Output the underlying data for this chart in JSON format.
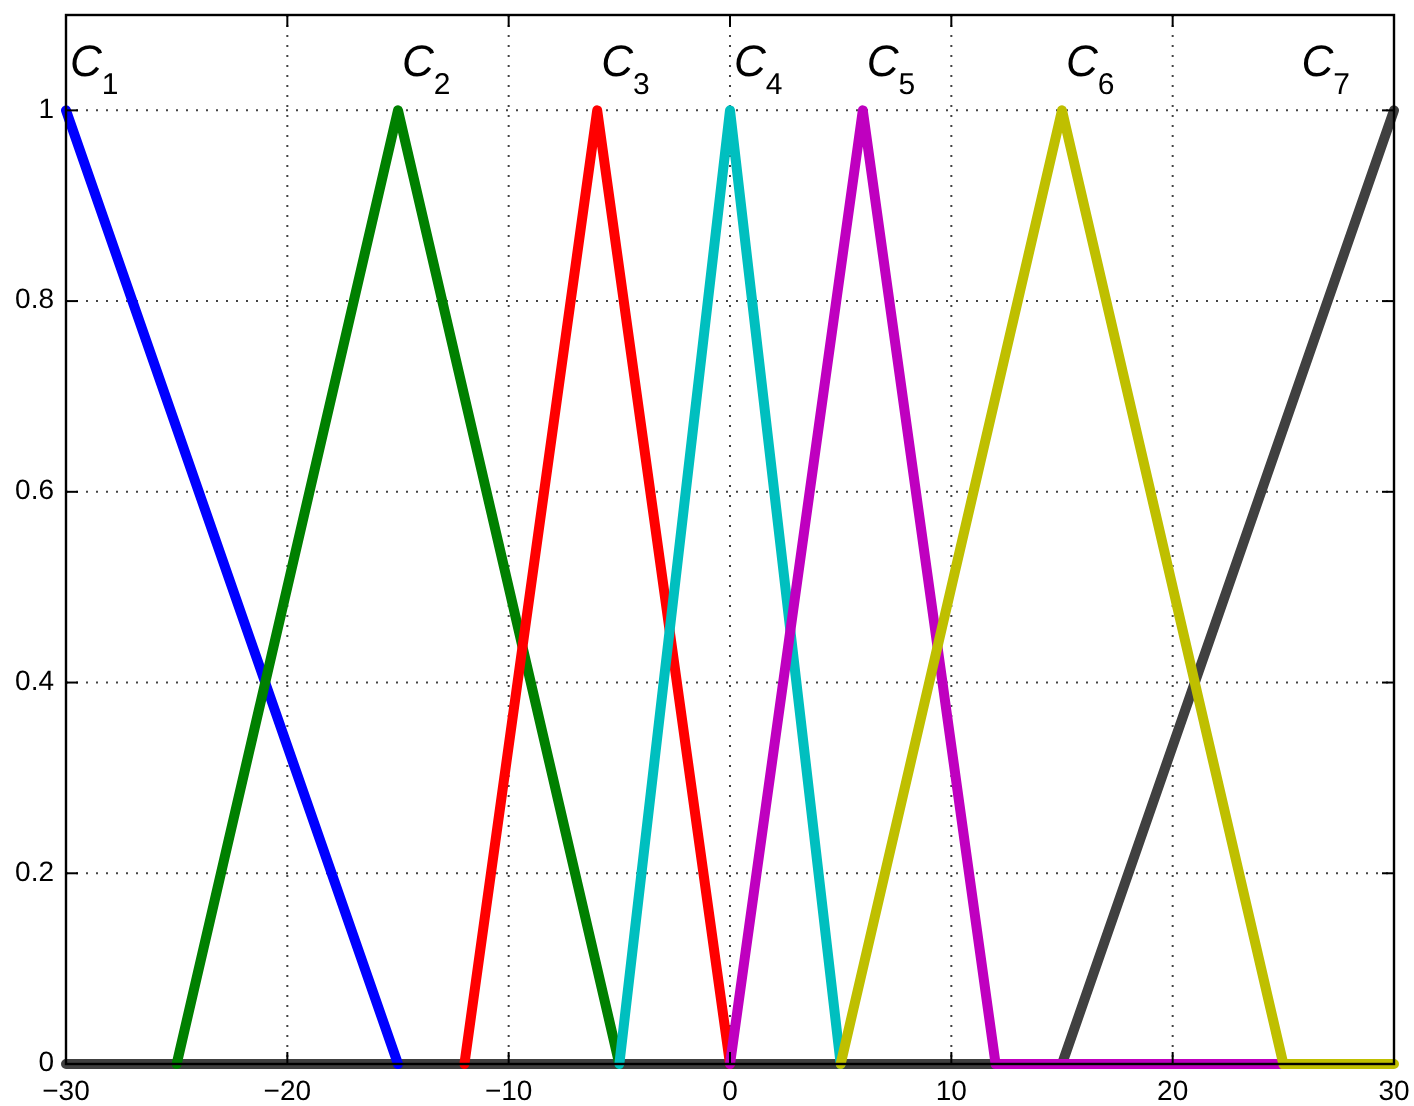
{
  "chart_data": {
    "type": "line",
    "series": [
      {
        "name": "C$_{7}$",
        "color": "#404040",
        "x": [
          -30,
          15,
          30
        ],
        "values": [
          0,
          0,
          1
        ]
      },
      {
        "name": "C$_{1}$",
        "color": "#0000ff",
        "x": [
          -30,
          -15
        ],
        "values": [
          1,
          0
        ]
      },
      {
        "name": "C$_{2}$",
        "color": "#008000",
        "x": [
          -25,
          -15,
          -5
        ],
        "values": [
          0,
          1,
          0
        ]
      },
      {
        "name": "C$_{3}$",
        "color": "#ff0000",
        "x": [
          -12,
          -6,
          0
        ],
        "values": [
          0,
          1,
          0
        ]
      },
      {
        "name": "C$_{4}$",
        "color": "#00bfbf",
        "x": [
          -5,
          0,
          5
        ],
        "values": [
          0,
          1,
          0
        ]
      },
      {
        "name": "C$_{5}$",
        "color": "#bf00bf",
        "x": [
          0,
          6,
          12,
          25
        ],
        "values": [
          0,
          1,
          0,
          0
        ]
      },
      {
        "name": "C$_{6}$",
        "color": "#bfbf00",
        "x": [
          5,
          15,
          25,
          30
        ],
        "values": [
          0,
          1,
          0,
          0
        ]
      }
    ],
    "xlim": [
      -30,
      30
    ],
    "ylim": [
      0,
      1.1
    ],
    "xticks": [
      {
        "value": -30,
        "label": "−30"
      },
      {
        "value": -20,
        "label": "−20"
      },
      {
        "value": -10,
        "label": "−10"
      },
      0,
      10,
      20,
      30
    ],
    "yticks": [
      0,
      0.2,
      0.4,
      0.6,
      0.8,
      1
    ],
    "grid": true,
    "line_style": "solid",
    "marker": "none"
  }
}
